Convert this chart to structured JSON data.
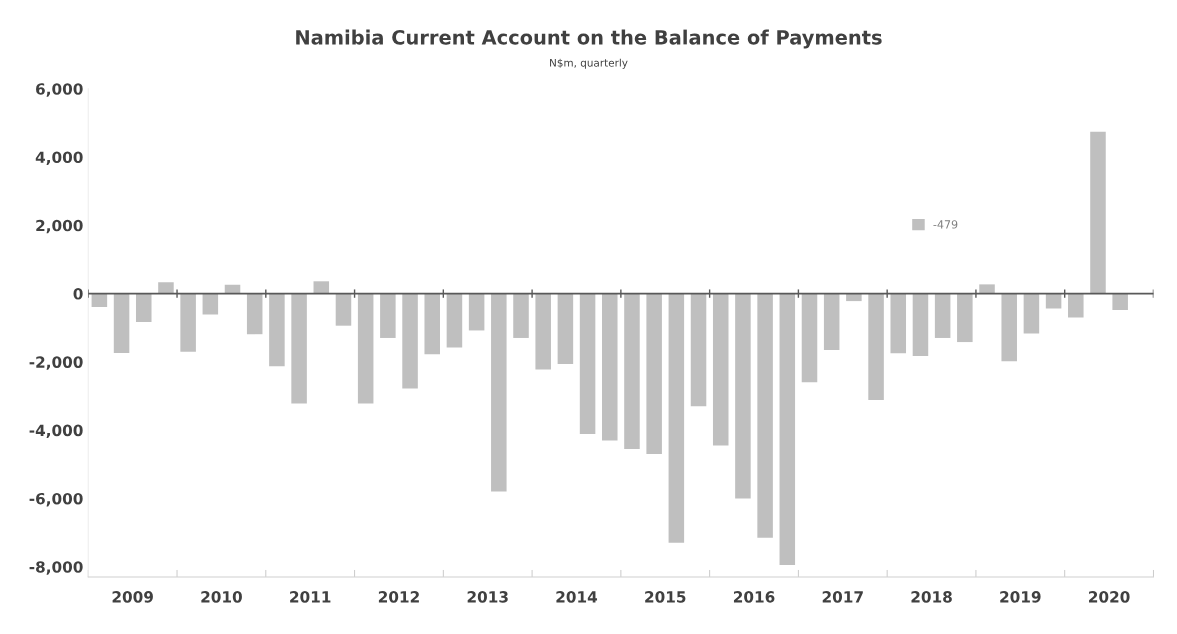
{
  "chart_data": {
    "type": "bar",
    "title": "Namibia Current Account on the Balance of Payments",
    "subtitle": "N$m, quarterly",
    "x": [
      2009.125,
      2009.375,
      2009.625,
      2009.875,
      2010.125,
      2010.375,
      2010.625,
      2010.875,
      2011.125,
      2011.375,
      2011.625,
      2011.875,
      2012.125,
      2012.375,
      2012.625,
      2012.875,
      2013.125,
      2013.375,
      2013.625,
      2013.875,
      2014.125,
      2014.375,
      2014.625,
      2014.875,
      2015.125,
      2015.375,
      2015.625,
      2015.875,
      2016.125,
      2016.375,
      2016.625,
      2016.875,
      2017.125,
      2017.375,
      2017.625,
      2017.875,
      2018.125,
      2018.375,
      2018.625,
      2018.875,
      2019.125,
      2019.375,
      2019.625,
      2019.875,
      2020.125,
      2020.375,
      2020.625
    ],
    "series": [
      {
        "name": "-479",
        "color": "#bfbfbf",
        "values": [
          -390,
          -1740,
          -830,
          330,
          -1700,
          -610,
          260,
          -1190,
          -2130,
          -3220,
          360,
          -940,
          -3220,
          -1300,
          -2780,
          -1780,
          -1580,
          -1080,
          -5800,
          -1300,
          -2220,
          -2060,
          -4110,
          -4300,
          -4550,
          -4700,
          -7300,
          -3300,
          -4450,
          -6000,
          -7150,
          -7950,
          -2600,
          -1650,
          -220,
          -3120,
          -1750,
          -1830,
          -1300,
          -1420,
          270,
          -1980,
          -1170,
          -440,
          -700,
          4740,
          -479
        ]
      }
    ],
    "xlim": [
      2009,
      2021
    ],
    "xticks": [
      {
        "value": 2009.5,
        "label": "2009"
      },
      {
        "value": 2010.5,
        "label": "2010"
      },
      {
        "value": 2011.5,
        "label": "2011"
      },
      {
        "value": 2012.5,
        "label": "2012"
      },
      {
        "value": 2013.5,
        "label": "2013"
      },
      {
        "value": 2014.5,
        "label": "2014"
      },
      {
        "value": 2015.5,
        "label": "2015"
      },
      {
        "value": 2016.5,
        "label": "2016"
      },
      {
        "value": 2017.5,
        "label": "2017"
      },
      {
        "value": 2018.5,
        "label": "2018"
      },
      {
        "value": 2019.5,
        "label": "2019"
      },
      {
        "value": 2020.5,
        "label": "2020"
      }
    ],
    "ylim": [
      -8300,
      6000
    ],
    "yticks": [
      {
        "value": -8000,
        "label": "-8,000"
      },
      {
        "value": -6000,
        "label": "-6,000"
      },
      {
        "value": -4000,
        "label": "-4,000"
      },
      {
        "value": -2000,
        "label": "-2,000"
      },
      0,
      {
        "value": 2000,
        "label": "2,000"
      },
      {
        "value": 4000,
        "label": "4,000"
      },
      {
        "value": 6000,
        "label": "6,000"
      }
    ],
    "ref_lines": [
      {
        "axis": "y",
        "value": 0,
        "color": "#595959"
      }
    ],
    "grid": false,
    "legend": "top right"
  }
}
